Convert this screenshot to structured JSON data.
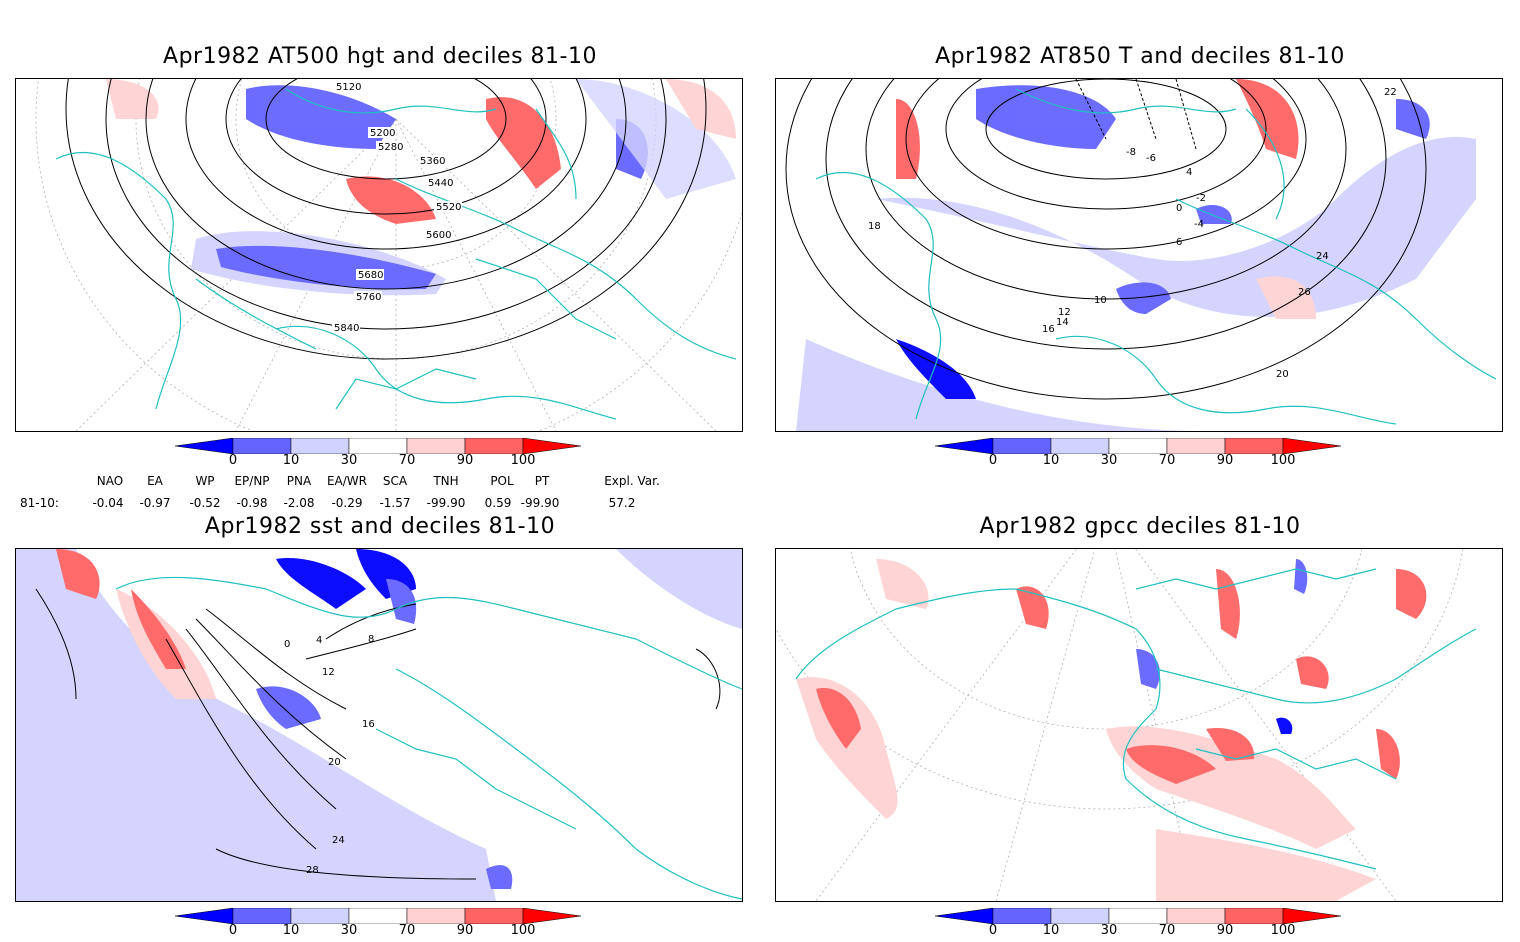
{
  "panels": [
    {
      "title": "Apr1982 AT500 hgt and deciles 81-10",
      "contour_labels": [
        "5120",
        "5200",
        "5280",
        "5360",
        "5440",
        "5520",
        "5600",
        "5680",
        "5760",
        "5840"
      ]
    },
    {
      "title": "Apr1982 AT850 T and deciles 81-10",
      "contour_labels": [
        "-8",
        "-6",
        "-4",
        "-2",
        "0",
        "4",
        "6",
        "10",
        "12",
        "14",
        "16",
        "18",
        "20",
        "22",
        "24",
        "26"
      ]
    },
    {
      "title": "Apr1982 sst and deciles 81-10",
      "contour_labels": [
        "0",
        "4",
        "8",
        "12",
        "16",
        "20",
        "24",
        "28"
      ]
    },
    {
      "title": "Apr1982 gpcc deciles 81-10",
      "contour_labels": []
    }
  ],
  "colorbar": {
    "ticks": [
      "0",
      "10",
      "30",
      "70",
      "90",
      "100"
    ],
    "colors": [
      "#0000ff",
      "#6464ff",
      "#d2d2ff",
      "#ffffff",
      "#ffd2d2",
      "#ff6464",
      "#ff0000"
    ]
  },
  "indices": {
    "names": [
      "NAO",
      "EA",
      "WP",
      "EP/NP",
      "PNA",
      "EA/WR",
      "SCA",
      "TNH",
      "POL",
      "PT",
      "Expl. Var."
    ],
    "row_label": "81-10:",
    "values": [
      "-0.04",
      "-0.97",
      "-0.52",
      "-0.98",
      "-2.08",
      "-0.29",
      "-1.57",
      "-99.90",
      "0.59",
      "-99.90",
      "57.2"
    ]
  }
}
